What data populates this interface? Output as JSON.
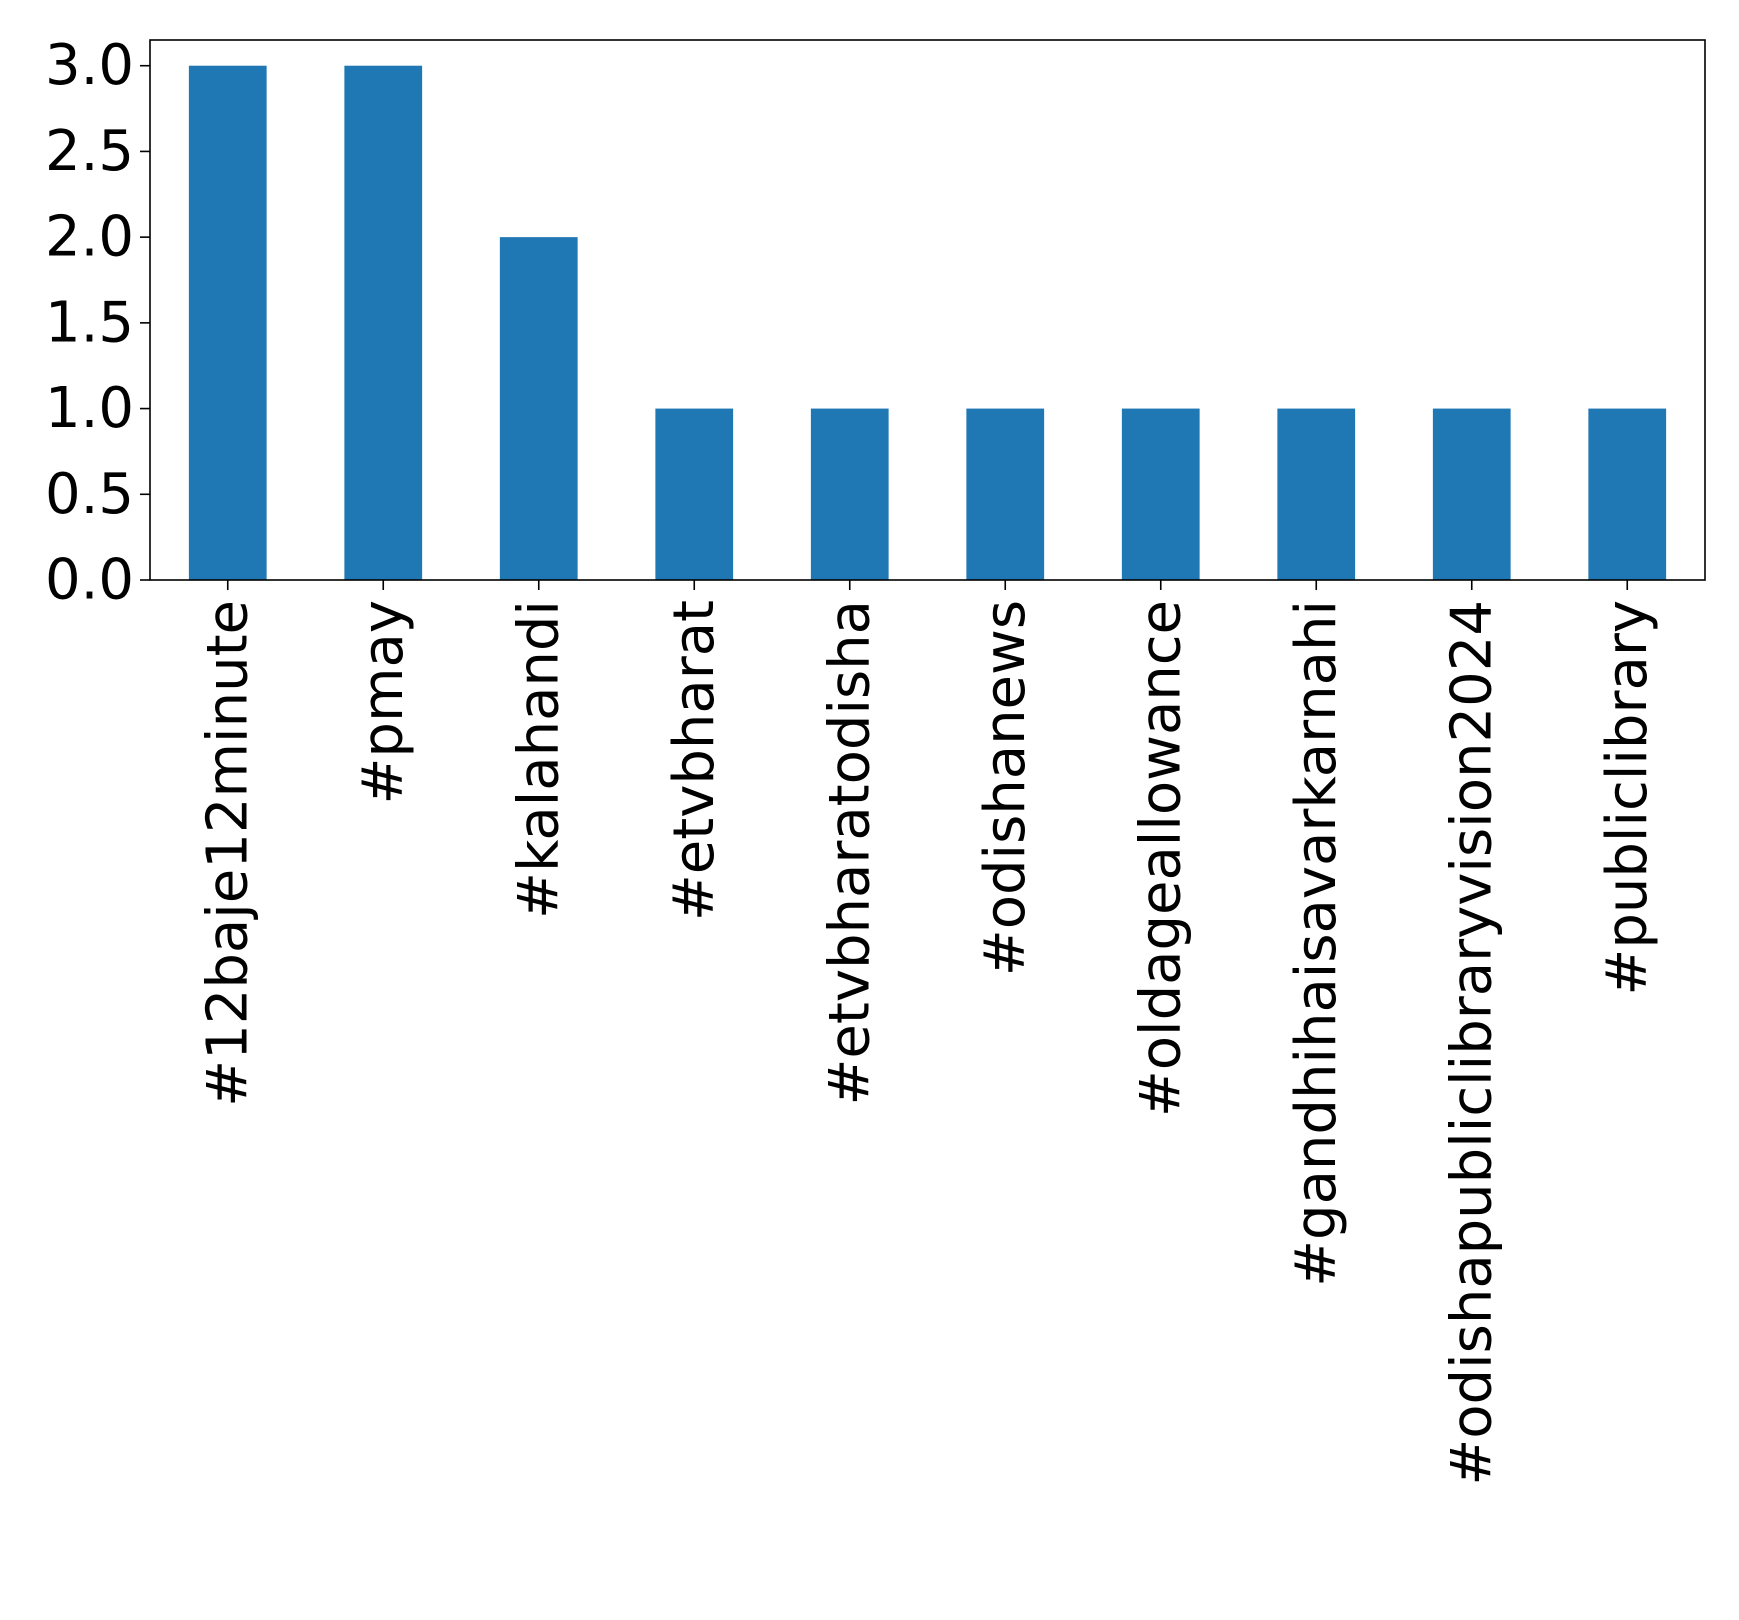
{
  "chart_data": {
    "type": "bar",
    "title": "",
    "xlabel": "",
    "ylabel": "",
    "categories": [
      "#12baje12minute",
      "#pmay",
      "#kalahandi",
      "#etvbharat",
      "#etvbharatodisha",
      "#odishanews",
      "#oldageallowance",
      "#gandhihaisavarkarnahi",
      "#odishapubliclibraryvision2024",
      "#publiclibrary"
    ],
    "values": [
      3,
      3,
      2,
      1,
      1,
      1,
      1,
      1,
      1,
      1
    ],
    "ylim": [
      0,
      3.15
    ],
    "yticks": [
      "0.0",
      "0.5",
      "1.0",
      "1.5",
      "2.0",
      "2.5",
      "3.0"
    ],
    "grid": false,
    "legend": "none",
    "bar_color": "#1f77b4"
  }
}
